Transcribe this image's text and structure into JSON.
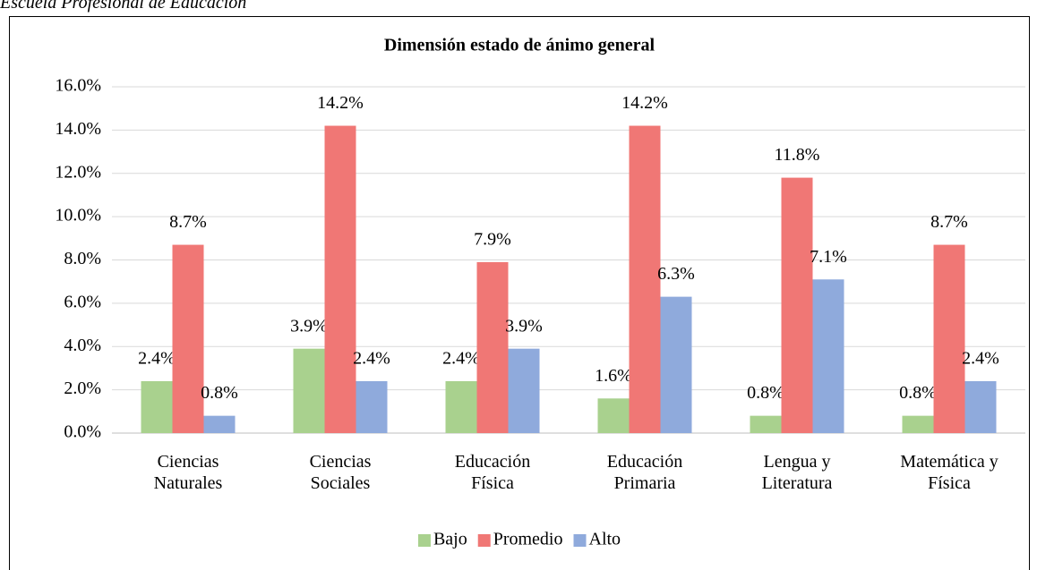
{
  "header": "Escuela Profesional de Educación",
  "chart_data": {
    "type": "bar",
    "title": "Dimensión estado de ánimo general",
    "categories": [
      "Ciencias\nNaturales",
      "Ciencias\nSociales",
      "Educación\nFísica",
      "Educación\nPrimaria",
      "Lengua y\nLiteratura",
      "Matemática y\nFísica"
    ],
    "series": [
      {
        "name": "Bajo",
        "color": "#a9d18e",
        "values": [
          2.4,
          3.9,
          2.4,
          1.6,
          0.8,
          0.8
        ],
        "value_labels": [
          "2.4%",
          "3.9%",
          "2.4%",
          "1.6%",
          "0.8%",
          "0.8%"
        ]
      },
      {
        "name": "Promedio",
        "color": "#f07775",
        "values": [
          8.7,
          14.2,
          7.9,
          14.2,
          11.8,
          8.7
        ],
        "value_labels": [
          "8.7%",
          "14.2%",
          "7.9%",
          "14.2%",
          "11.8%",
          "8.7%"
        ]
      },
      {
        "name": "Alto",
        "color": "#8faadc",
        "values": [
          0.8,
          2.4,
          3.9,
          6.3,
          7.1,
          2.4
        ],
        "value_labels": [
          "0.8%",
          "2.4%",
          "3.9%",
          "6.3%",
          "7.1%",
          "2.4%"
        ]
      }
    ],
    "ylim": [
      0,
      16
    ],
    "yticks": [
      {
        "value": 0,
        "label": "0.0%"
      },
      {
        "value": 2,
        "label": "2.0%"
      },
      {
        "value": 4,
        "label": "4.0%"
      },
      {
        "value": 6,
        "label": "6.0%"
      },
      {
        "value": 8,
        "label": "8.0%"
      },
      {
        "value": 10,
        "label": "10.0%"
      },
      {
        "value": 12,
        "label": "12.0%"
      },
      {
        "value": 14,
        "label": "14.0%"
      },
      {
        "value": 16,
        "label": "16.0%"
      }
    ],
    "grid": true,
    "legend": "bottom"
  }
}
